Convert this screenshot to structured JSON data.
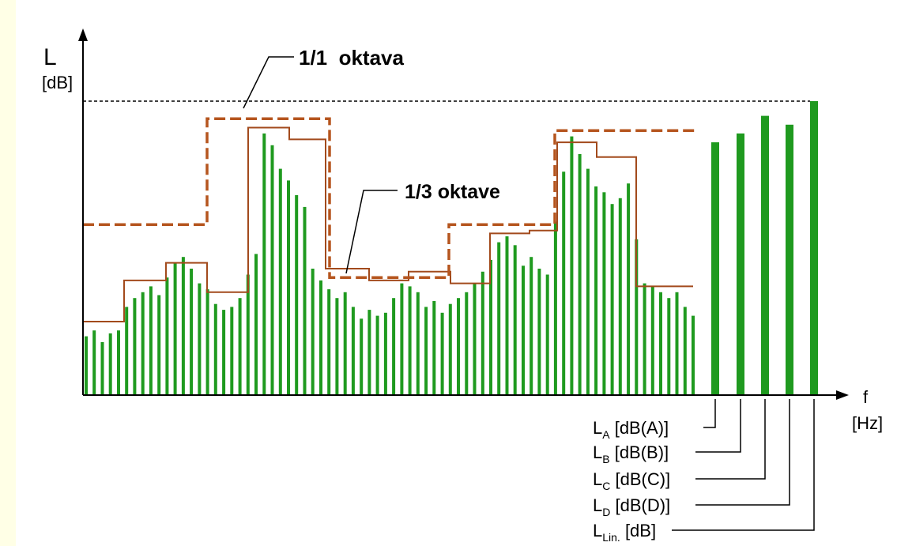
{
  "axes": {
    "y_symbol": "L",
    "y_unit": "[dB]",
    "x_symbol": "f",
    "x_unit": "[Hz]"
  },
  "annotations": {
    "octave": "1/1  oktava",
    "third_octave": "1/3 oktave"
  },
  "summary_legend": [
    {
      "main": "L",
      "sub": "A",
      "unit": "[dB(A)]"
    },
    {
      "main": "L",
      "sub": "B",
      "unit": "[dB(B)]"
    },
    {
      "main": "L",
      "sub": "C",
      "unit": "[dB(C)]"
    },
    {
      "main": "L",
      "sub": "D",
      "unit": "[dB(D)]"
    },
    {
      "main": "L",
      "sub": "Lin.",
      "unit": "[dB]"
    }
  ],
  "colors": {
    "bars": "#1f9a1f",
    "octave_line": "#b5551e",
    "third_octave_line": "#a24a1c",
    "axis": "#000000",
    "strip": "#ffffe6"
  },
  "chart_data": {
    "type": "bar",
    "y_range": [
      0,
      100
    ],
    "fine_bars": [
      20,
      22,
      18,
      21,
      22,
      30,
      33,
      35,
      37,
      34,
      40,
      45,
      47,
      43,
      38,
      36,
      31,
      29,
      30,
      33,
      41,
      48,
      89,
      85,
      77,
      73,
      68,
      64,
      43,
      39,
      36,
      33,
      35,
      30,
      26,
      29,
      27,
      28,
      33,
      38,
      37,
      35,
      30,
      32,
      28,
      31,
      33,
      35,
      38,
      42,
      46,
      52,
      54,
      51,
      44,
      47,
      43,
      41,
      59,
      76,
      88,
      82,
      77,
      71,
      69,
      65,
      67,
      72,
      53,
      38,
      37,
      35,
      33,
      35,
      30,
      27
    ],
    "third_octave_levels": [
      25,
      25,
      25,
      39,
      39,
      39,
      39,
      45,
      45,
      45,
      45,
      45,
      45,
      35,
      35,
      35,
      35,
      35,
      35,
      35,
      35,
      35,
      35,
      35,
      35,
      35,
      35,
      35,
      35,
      35,
      35,
      91,
      91,
      91,
      91,
      91,
      87,
      87,
      87,
      87,
      87,
      87,
      43,
      43,
      43,
      43,
      43,
      43,
      43,
      39,
      39,
      39,
      39,
      39,
      39,
      39,
      42,
      42,
      42,
      42,
      42,
      42,
      38,
      38,
      38,
      38,
      38,
      38,
      38,
      38,
      38,
      55,
      55,
      55,
      55,
      55,
      55,
      55,
      55,
      55,
      55,
      55,
      56,
      56,
      56,
      56,
      56,
      56,
      86,
      86,
      86,
      86,
      86,
      86,
      86,
      86,
      81,
      81,
      81,
      81,
      81,
      81,
      81,
      81,
      81,
      81,
      81,
      81,
      81,
      81,
      81,
      81,
      81,
      81,
      81,
      81,
      81,
      81,
      37,
      37,
      37,
      37,
      37,
      37
    ],
    "third_octave_steps": [
      {
        "level": 25
      },
      {
        "level": 39
      },
      {
        "level": 45
      },
      {
        "level": 35
      },
      {
        "level": 91
      },
      {
        "level": 87
      },
      {
        "level": 43
      },
      {
        "level": 39
      },
      {
        "level": 42
      },
      {
        "level": 38
      },
      {
        "level": 55
      },
      {
        "level": 56
      },
      {
        "level": 86
      },
      {
        "level": 81
      },
      {
        "level": 37
      }
    ],
    "octave_steps": [
      {
        "level": 58
      },
      {
        "level": 94
      },
      {
        "level": 40
      },
      {
        "level": 58
      },
      {
        "level": 90
      }
    ],
    "summary_values": [
      {
        "name": "LA",
        "value": 86
      },
      {
        "name": "LB",
        "value": 89
      },
      {
        "name": "LC",
        "value": 95
      },
      {
        "name": "LD",
        "value": 92
      },
      {
        "name": "LLin",
        "value": 100
      }
    ]
  }
}
